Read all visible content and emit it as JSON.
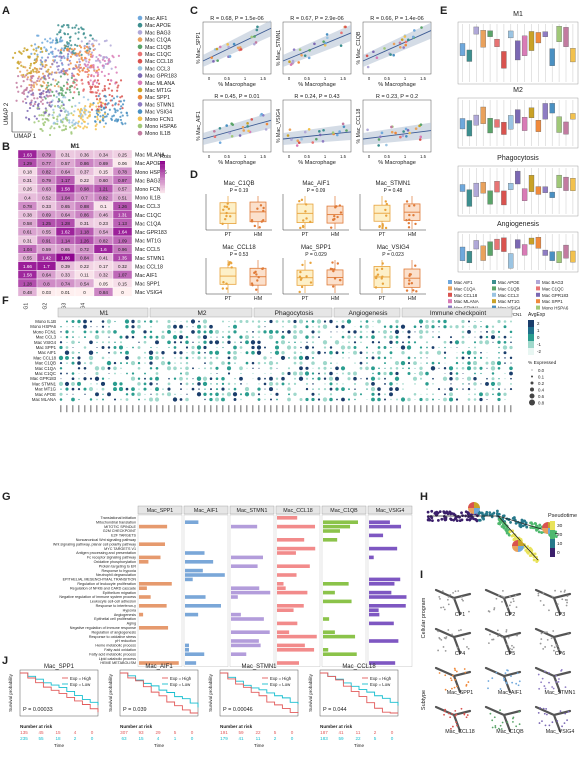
{
  "panels": [
    "A",
    "B",
    "C",
    "D",
    "E",
    "F",
    "G",
    "H",
    "I",
    "J"
  ],
  "colors": {
    "Mac_AIF1": "#6fa8dc",
    "Mac_APOE": "#3d8f8f",
    "Mac_BAG3": "#b0a8d8",
    "Mac_C1QA": "#e9a15c",
    "Mac_C1QB": "#5aa469",
    "Mac_C1QC": "#e87474",
    "Mac_CCL18": "#d9534f",
    "Mac_CCL3": "#9bc4e2",
    "Mac_GPR183": "#7b68b3",
    "Mac_MT1G": "#c9a227",
    "Mac_MLANA": "#d97bb6",
    "Mac_SPP1": "#f08a3c",
    "Mac_STMN1": "#8e7cc3",
    "Mac_VSIG4": "#4a90c2",
    "Mono_FCN1": "#f2c14e",
    "Mono_HSPA6": "#a0c878",
    "Mono_IL1B": "#c27ba0"
  },
  "panel_a": {
    "xlabel": "UMAP 1",
    "ylabel": "UMAP 2",
    "legend": [
      "Mac_AIF1",
      "Mac_APOE",
      "Mac_BAG3",
      "Mac_C1QA",
      "Mac_C1QB",
      "Mac_C1QC",
      "Mac_CCL18",
      "Mac_CCL3",
      "Mac_GPR183",
      "Mac_MLANA",
      "Mac_MT1G",
      "Mac_SPP1",
      "Mac_STMN1",
      "Mac_VSIG4",
      "Mono_FCN1",
      "Mono_HSPA6",
      "Mono_IL1B"
    ]
  },
  "panel_b": {
    "title": "M1",
    "col_labels": [
      "G1",
      "G2",
      "G3",
      "G4"
    ],
    "legend_title": "Rois",
    "rows": [
      {
        "name": "Mac_MLANA",
        "v": [
          "1.63",
          "0.79",
          "0.31",
          "0.36",
          "0.34",
          "0.25"
        ]
      },
      {
        "name": "Mac_APOE",
        "v": [
          "1.29",
          "0.77",
          "0.57",
          "0.86",
          "0.69",
          "0.06"
        ]
      },
      {
        "name": "Mono_HSPA6",
        "v": [
          "0.18",
          "0.82",
          "0.64",
          "0.37",
          "0.15",
          "0.78"
        ]
      },
      {
        "name": "Mac_BAG3",
        "v": [
          "0.31",
          "0.79",
          "1.17",
          "0.22",
          "0.60",
          "0.97"
        ]
      },
      {
        "name": "Mono_FCN1",
        "v": [
          "0.26",
          "0.63",
          "1.58",
          "0.98",
          "1.21",
          "0.57"
        ]
      },
      {
        "name": "Mono_IL1B",
        "v": [
          "0.4",
          "0.52",
          "1.04",
          "0.7",
          "0.82",
          "0.51"
        ]
      },
      {
        "name": "Mac_CCL3",
        "v": [
          "0.78",
          "0.33",
          "0.65",
          "0.88",
          "0.1",
          "1.26"
        ]
      },
      {
        "name": "Mac_C1QC",
        "v": [
          "0.38",
          "0.69",
          "0.64",
          "0.86",
          "0.46",
          "1.31"
        ]
      },
      {
        "name": "Mac_C1QA",
        "v": [
          "0.58",
          "1.25",
          "1.28",
          "0.31",
          "0.23",
          "1.13"
        ]
      },
      {
        "name": "Mac_GPR183",
        "v": [
          "0.61",
          "0.55",
          "1.62",
          "1.18",
          "0.54",
          "1.64"
        ]
      },
      {
        "name": "Mac_MT1G",
        "v": [
          "0.31",
          "0.91",
          "1.14",
          "1.26",
          "0.82",
          "1.09"
        ]
      },
      {
        "name": "Mac_CCL5",
        "v": [
          "1.04",
          "0.59",
          "0.65",
          "0.72",
          "1.6",
          "0.96"
        ]
      },
      {
        "name": "Mac_STMN1",
        "v": [
          "0.55",
          "1.42",
          "1.86",
          "0.84",
          "0.41",
          "1.35"
        ]
      },
      {
        "name": "Mac_CCL18",
        "v": [
          "1.66",
          "1.7",
          "0.39",
          "0.22",
          "0.17",
          "0.32"
        ]
      },
      {
        "name": "Mac_AIF1",
        "v": [
          "1.58",
          "0.64",
          "0.33",
          "0.11",
          "0.32",
          "1.07"
        ]
      },
      {
        "name": "Mac_SPP1",
        "v": [
          "1.28",
          "0.8",
          "0.74",
          "0.54",
          "0.05",
          "0.15"
        ]
      },
      {
        "name": "Mac_VSIG4",
        "v": [
          "0.48",
          "0.03",
          "0.01",
          "0",
          "0.84",
          "0"
        ]
      }
    ]
  },
  "panel_c": {
    "xlabel": "% Macrophage",
    "plots": [
      {
        "ylabel": "% Mac_SPP1",
        "stat": "R = 0.68, P = 1.5e-06"
      },
      {
        "ylabel": "% Mac_STMN1",
        "stat": "R = 0.67, P = 2.9e-06"
      },
      {
        "ylabel": "% Mac_C1QB",
        "stat": "R = 0.66, P = 1.4e-06"
      },
      {
        "ylabel": "% Mac_AIF1",
        "stat": "R = 0.45, P = 0.01"
      },
      {
        "ylabel": "% Mac_VSIG4",
        "stat": "R = 0.24, P = 0.43"
      },
      {
        "ylabel": "% Mac_CCL18",
        "stat": "R = 0.23, P = 0.2"
      }
    ]
  },
  "panel_d": {
    "groups": [
      "PT",
      "HM"
    ],
    "plots": [
      {
        "title": "Mac_C1QB",
        "p": "P = 0.19"
      },
      {
        "title": "Mac_AIF1",
        "p": "P = 0.09"
      },
      {
        "title": "Mac_STMN1",
        "p": "P = 0.48"
      },
      {
        "title": "Mac_CCL18",
        "p": "P = 0.53"
      },
      {
        "title": "Mac_SPP1",
        "p": "P = 0.029"
      },
      {
        "title": "Mac_VSIG4",
        "p": "P = 0.023"
      }
    ]
  },
  "panel_e": {
    "titles": [
      "M1",
      "M2",
      "Phagocytosis",
      "Angiogenesis"
    ],
    "legend": [
      "Mac_AIF1",
      "Mac_APOE",
      "Mac_BAG3",
      "Mac_C1QA",
      "Mac_C1QB",
      "Mac_C1QC",
      "Mac_CCL18",
      "Mac_CCL3",
      "Mac_GPR183",
      "Mac_MLANA",
      "Mac_MT1G",
      "Mac_SPP1",
      "Mac_STMN1",
      "Mac_VSIG4",
      "Mono_HSPA6",
      "Mono_IL1B",
      "Mono_FCN1"
    ]
  },
  "panel_f": {
    "sections": [
      "M1",
      "M2",
      "Phagocytosis",
      "Angiogenesis",
      "Immune checkpoint"
    ],
    "rows": [
      "Mono_IL1B",
      "Mono_HSPA6",
      "Mono_FCN1",
      "Mac_CCL3",
      "Mac_VSIG4",
      "Mac_SPP1",
      "Mac_AIF1",
      "Mac_CCL18",
      "Mac_C1QB",
      "Mac_C1QA",
      "Mac_C1QC",
      "Mac_GPR183",
      "Mac_STMN1",
      "Mac_MT1G",
      "Mac_APOE",
      "Mac_MLANA"
    ],
    "legend_title": "AvgExp",
    "legend_ticks": [
      "2",
      "1",
      "0",
      "-1",
      "-2"
    ],
    "size_title": "% Expressed",
    "size_ticks": [
      "0.0",
      "0.1",
      "0.2",
      "0.4",
      "0.6",
      "0.8"
    ]
  },
  "panel_g": {
    "columns": [
      "Mac_SPP1",
      "Mac_AIF1",
      "Mac_STMN1",
      "Mac_CCL18",
      "Mac_C1QB",
      "Mac_VSIG4"
    ],
    "xlabel": "-Log10(FDR)",
    "terms": [
      "Translational initiation",
      "Mitochondrial translation",
      "MITOTIC SPINDLE",
      "G2M CHECKPOINT",
      "E2F TARGETS",
      "Noncanonical Wnt signaling pathway",
      "Wnt signaling pathway, planar cell polarity pathway",
      "MYC TARGETS V1",
      "Antigen processing and presentation",
      "Fc receptor signaling pathway",
      "Oxidative phosphorylation",
      "Protein targeting to ER",
      "Response to hypoxia",
      "Neutrophil degranulation",
      "EPITHELIAL MESENCHYMAL TRANSITION",
      "Regulation of leukocyte proliferation",
      "Regulation of NFKB and CARD cascade",
      "Epithelium migration",
      "Negative regulation of immune system process",
      "Leukocyte cell-cell adhesion",
      "Response to interferon-γ",
      "Hypoxia",
      "Angiogenesis",
      "Epithelial cell proliferation",
      "Aging",
      "Negative regulation of immune response",
      "Regulation of angiogenesis",
      "Response to oxidative stress",
      "pH reduction",
      "Heme metabolic process",
      "Fatty acid oxidation",
      "Fatty acid metabolic process",
      "Lipid catabolic process",
      "HEME METABOLISM"
    ]
  },
  "panel_h": {
    "legend_title": "Pseudotime",
    "ticks": [
      "30",
      "20",
      "10",
      "0"
    ]
  },
  "panel_i": {
    "row_labels": [
      "Cellular program",
      "Subtype"
    ],
    "titles": [
      "CP1",
      "CP2",
      "CP3",
      "CP4",
      "CP5",
      "CP6",
      "Mac_SPP1",
      "Mac_AIF1",
      "Mac_STMN1",
      "Mac_CCL18",
      "Mac_C1QB",
      "Mac_VSIG4"
    ]
  },
  "panel_j": {
    "ylabel": "Survival probability",
    "xlabel": "Time",
    "legend": [
      "Exp = High",
      "Exp = Low"
    ],
    "risk_title": "Number at risk",
    "plots": [
      {
        "title": "Mac_SPP1",
        "p": "P = 0.00033",
        "hi": [
          "135",
          "45",
          "15",
          "4",
          "0"
        ],
        "lo": [
          "235",
          "55",
          "18",
          "2",
          "0"
        ]
      },
      {
        "title": "Mac_AIF1",
        "p": "P = 0.039",
        "hi": [
          "307",
          "93",
          "29",
          "5",
          "0"
        ],
        "lo": [
          "63",
          "15",
          "4",
          "1",
          "0"
        ]
      },
      {
        "title": "Mac_STMN1",
        "p": "P = 0.00046",
        "hi": [
          "191",
          "59",
          "22",
          "5",
          "0"
        ],
        "lo": [
          "179",
          "41",
          "11",
          "2",
          "0"
        ]
      },
      {
        "title": "Mac_CCL18",
        "p": "P = 0.044",
        "hi": [
          "187",
          "41",
          "11",
          "2",
          "0"
        ],
        "lo": [
          "183",
          "59",
          "22",
          "5",
          "0"
        ]
      }
    ],
    "xticks": [
      "0",
      "1,000",
      "2,000",
      "3,000",
      "4,000"
    ],
    "yticks": [
      "0.00",
      "0.25",
      "0.50",
      "0.75",
      "1.00"
    ]
  }
}
